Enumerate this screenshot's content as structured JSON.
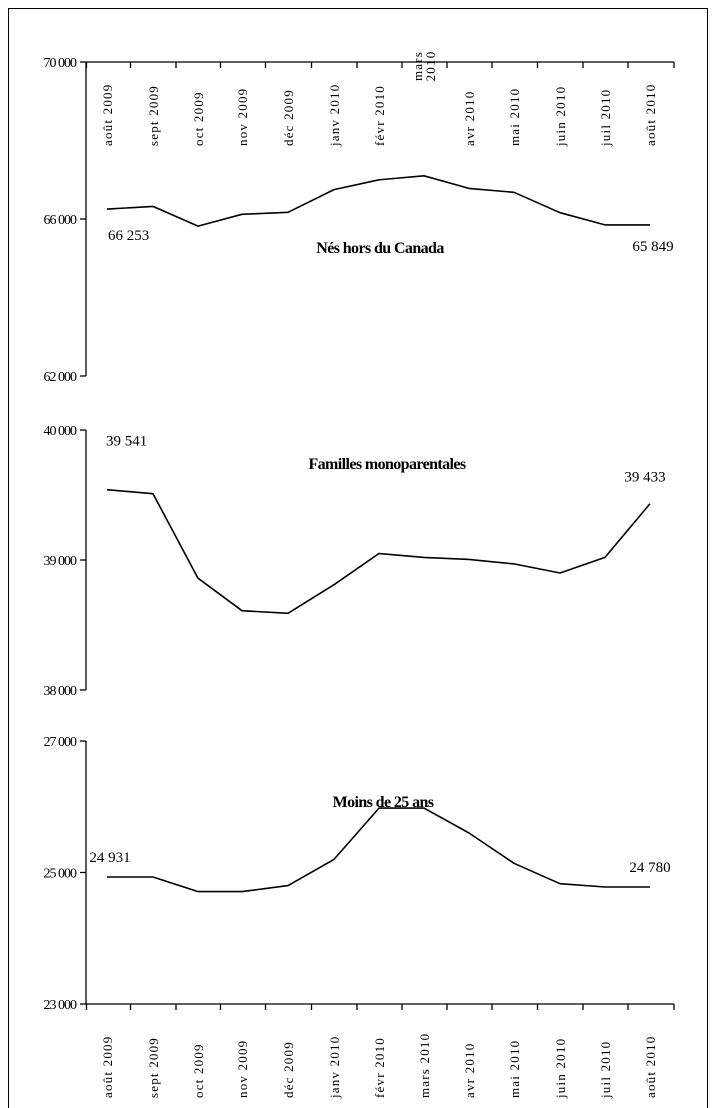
{
  "chart_data": [
    {
      "type": "line",
      "title": "Nés hors du Canada",
      "categories": [
        "août 2009",
        "sept 2009",
        "oct 2009",
        "nov 2009",
        "déc 2009",
        "janv 2010",
        "févr 2010",
        "mars 2010",
        "avr 2010",
        "mai 2010",
        "juin 2010",
        "juil 2010",
        "août 2010"
      ],
      "series": [
        {
          "values": [
            66253,
            66320,
            65820,
            66120,
            66170,
            66750,
            67000,
            67100,
            66780,
            66680,
            66160,
            65849,
            65849
          ]
        }
      ],
      "ylim": [
        62000,
        70000
      ],
      "yticks": [
        "70 000",
        "66 000",
        "62 000"
      ],
      "ytick_values": [
        70000,
        66000,
        62000
      ],
      "x_tick_position": "top",
      "annotations": [
        {
          "text": "66 253",
          "index": 0
        },
        {
          "text": "65 849",
          "index": 12
        }
      ]
    },
    {
      "type": "line",
      "title": "Familles monoparentales",
      "categories": [
        "août 2009",
        "sept 2009",
        "oct 2009",
        "nov 2009",
        "déc 2009",
        "janv 2010",
        "févr 2010",
        "mars 2010",
        "avr 2010",
        "mai 2010",
        "juin 2010",
        "juil 2010",
        "août 2010"
      ],
      "series": [
        {
          "values": [
            39541,
            39510,
            38860,
            38610,
            38590,
            38810,
            39050,
            39020,
            39005,
            38970,
            38900,
            39020,
            39433
          ]
        }
      ],
      "ylim": [
        38000,
        40000
      ],
      "yticks": [
        "40 000",
        "39 000",
        "38 000"
      ],
      "ytick_values": [
        40000,
        39000,
        38000
      ],
      "x_tick_position": "none",
      "annotations": [
        {
          "text": "39 541",
          "index": 0
        },
        {
          "text": "39 433",
          "index": 12
        }
      ]
    },
    {
      "type": "line",
      "title": "Moins de 25 ans",
      "categories": [
        "août 2009",
        "sept 2009",
        "oct 2009",
        "nov 2009",
        "déc 2009",
        "janv 2010",
        "févr 2010",
        "mars 2010",
        "avr 2010",
        "mai 2010",
        "juin 2010",
        "juil 2010",
        "août 2010"
      ],
      "series": [
        {
          "values": [
            24931,
            24931,
            24710,
            24710,
            24800,
            25200,
            25980,
            25980,
            25600,
            25140,
            24830,
            24780,
            24780
          ]
        }
      ],
      "ylim": [
        23000,
        27000
      ],
      "yticks": [
        "27 000",
        "25 000",
        "23 000"
      ],
      "ytick_values": [
        27000,
        25000,
        23000
      ],
      "x_tick_position": "bottom",
      "annotations": [
        {
          "text": "24 931",
          "index": 0
        },
        {
          "text": "24 780",
          "index": 12
        }
      ]
    }
  ]
}
